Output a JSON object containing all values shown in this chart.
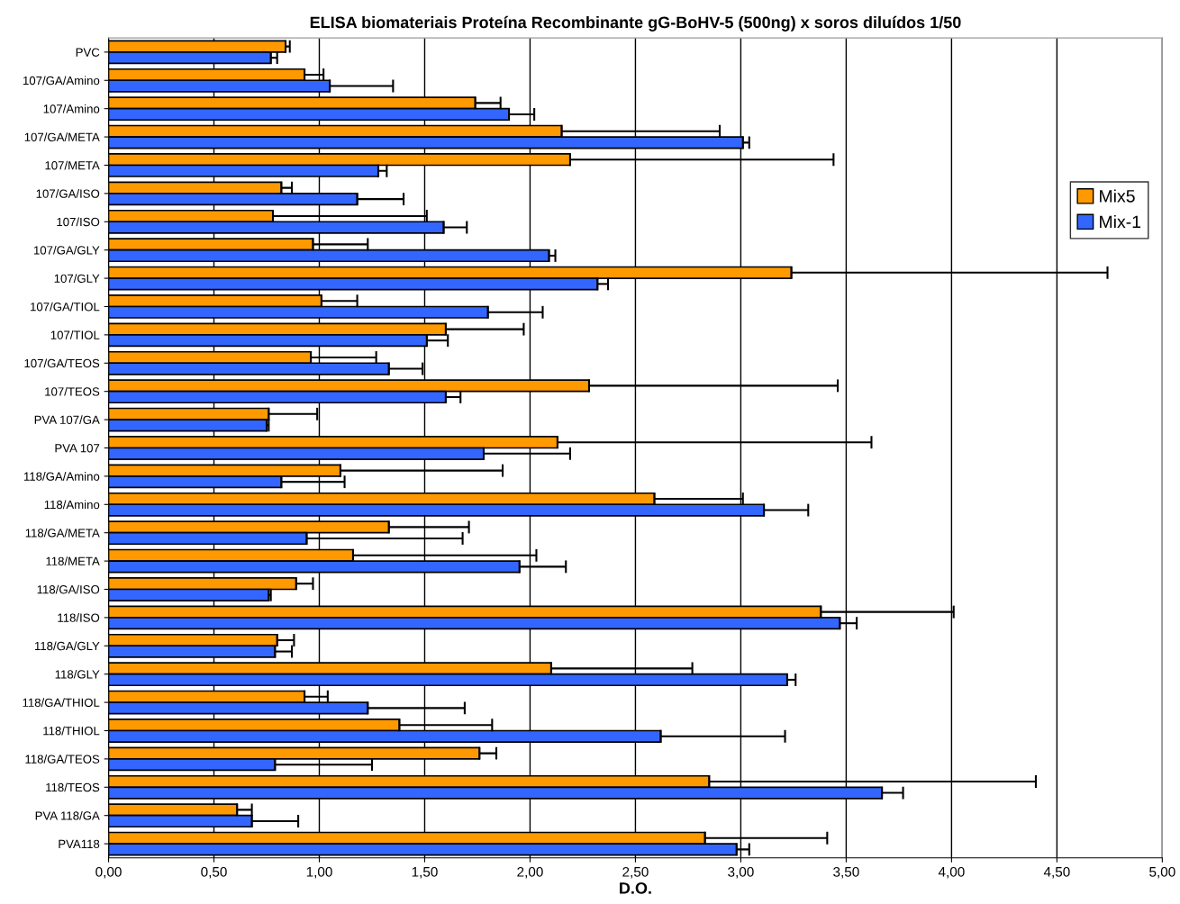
{
  "chart_data": {
    "type": "bar",
    "orientation": "horizontal",
    "title": "ELISA biomateriais Proteína Recombinante gG-BoHV-5 (500ng) x soros diluídos 1/50",
    "xlabel": "D.O.",
    "categories": [
      "PVC",
      "107/GA/Amino",
      "107/Amino",
      "107/GA/META",
      "107/META",
      "107/GA/ISO",
      "107/ISO",
      "107/GA/GLY",
      "107/GLY",
      "107/GA/TIOL",
      "107/TIOL",
      "107/GA/TEOS",
      "107/TEOS",
      "PVA 107/GA",
      "PVA 107",
      "118/GA/Amino",
      "118/Amino",
      "118/GA/META",
      "118/META",
      "118/GA/ISO",
      "118/ISO",
      "118/GA/GLY",
      "118/GLY",
      "118/GA/THIOL",
      "118/THIOL",
      "118/GA/TEOS",
      "118/TEOS",
      "PVA 118/GA",
      "PVA118"
    ],
    "series": [
      {
        "name": "Mix5",
        "color": "#ff9900",
        "values": [
          0.84,
          0.93,
          1.74,
          2.15,
          2.19,
          0.82,
          0.78,
          0.97,
          3.24,
          1.01,
          1.6,
          0.96,
          2.28,
          0.76,
          2.13,
          1.1,
          2.59,
          1.33,
          1.16,
          0.89,
          3.38,
          0.8,
          2.1,
          0.93,
          1.38,
          1.76,
          2.85,
          0.61,
          2.83
        ],
        "errors": [
          [
            0.84,
            0.86
          ],
          [
            0.93,
            1.02
          ],
          [
            1.74,
            1.86
          ],
          [
            2.15,
            2.9
          ],
          [
            2.19,
            3.44
          ],
          [
            0.82,
            0.87
          ],
          [
            0.78,
            1.51
          ],
          [
            0.97,
            1.23
          ],
          [
            3.24,
            4.74
          ],
          [
            1.01,
            1.18
          ],
          [
            1.6,
            1.97
          ],
          [
            0.96,
            1.27
          ],
          [
            2.28,
            3.46
          ],
          [
            0.76,
            0.99
          ],
          [
            2.13,
            3.62
          ],
          [
            1.1,
            1.87
          ],
          [
            2.59,
            3.01
          ],
          [
            1.33,
            1.71
          ],
          [
            1.16,
            2.03
          ],
          [
            0.89,
            0.97
          ],
          [
            3.38,
            4.01
          ],
          [
            0.8,
            0.88
          ],
          [
            2.1,
            2.77
          ],
          [
            0.93,
            1.04
          ],
          [
            1.38,
            1.82
          ],
          [
            1.76,
            1.84
          ],
          [
            2.85,
            4.4
          ],
          [
            0.61,
            0.68
          ],
          [
            2.83,
            3.41
          ]
        ]
      },
      {
        "name": "Mix-1",
        "color": "#3366ff",
        "values": [
          0.77,
          1.05,
          1.9,
          3.01,
          1.28,
          1.18,
          1.59,
          2.09,
          2.32,
          1.8,
          1.51,
          1.33,
          1.6,
          0.75,
          1.78,
          0.82,
          3.11,
          0.94,
          1.95,
          0.76,
          3.47,
          0.79,
          3.22,
          1.23,
          2.62,
          0.79,
          3.67,
          0.68,
          2.98
        ],
        "errors": [
          [
            0.77,
            0.8
          ],
          [
            1.05,
            1.35
          ],
          [
            1.9,
            2.02
          ],
          [
            3.01,
            3.04
          ],
          [
            1.28,
            1.32
          ],
          [
            1.18,
            1.4
          ],
          [
            1.59,
            1.7
          ],
          [
            2.09,
            2.12
          ],
          [
            2.32,
            2.37
          ],
          [
            1.8,
            2.06
          ],
          [
            1.51,
            1.61
          ],
          [
            1.33,
            1.49
          ],
          [
            1.6,
            1.67
          ],
          [
            0.75,
            0.76
          ],
          [
            1.78,
            2.19
          ],
          [
            0.82,
            1.12
          ],
          [
            3.11,
            3.32
          ],
          [
            0.94,
            1.68
          ],
          [
            1.95,
            2.17
          ],
          [
            0.76,
            0.77
          ],
          [
            3.47,
            3.55
          ],
          [
            0.79,
            0.87
          ],
          [
            3.22,
            3.26
          ],
          [
            1.23,
            1.69
          ],
          [
            2.62,
            3.21
          ],
          [
            0.79,
            1.25
          ],
          [
            3.67,
            3.77
          ],
          [
            0.68,
            0.9
          ],
          [
            2.98,
            3.04
          ]
        ]
      }
    ],
    "xlim": [
      0,
      5
    ],
    "xticks": [
      {
        "value": 0,
        "label": "0,00"
      },
      {
        "value": 0.5,
        "label": "0,50"
      },
      {
        "value": 1,
        "label": "1,00"
      },
      {
        "value": 1.5,
        "label": "1,50"
      },
      {
        "value": 2,
        "label": "2,00"
      },
      {
        "value": 2.5,
        "label": "2,50"
      },
      {
        "value": 3,
        "label": "3,00"
      },
      {
        "value": 3.5,
        "label": "3,50"
      },
      {
        "value": 4,
        "label": "4,00"
      },
      {
        "value": 4.5,
        "label": "4,50"
      },
      {
        "value": 5,
        "label": "5,00"
      }
    ],
    "grid": "x",
    "legend": "right"
  }
}
